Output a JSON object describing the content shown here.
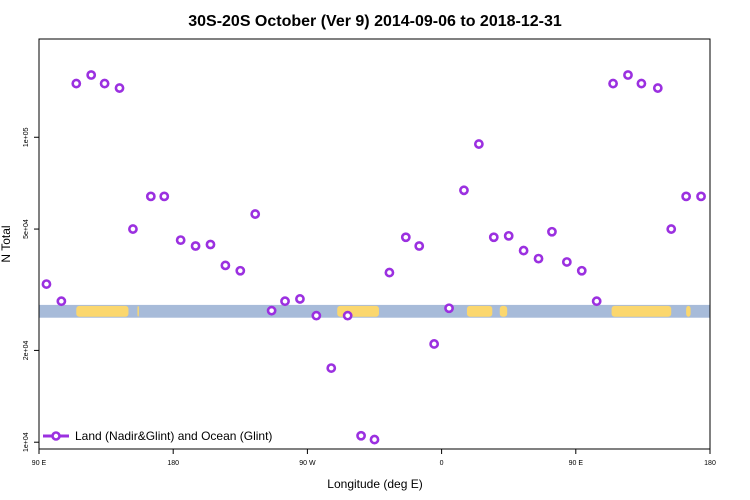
{
  "chart_data": {
    "type": "scatter",
    "title": "30S-20S October (Ver 9)   2014-09-06 to 2018-12-31",
    "xlabel": "Longitude (deg E)",
    "ylabel": "N Total",
    "x_scale": "longitude_wrapped_90E_to_180",
    "y_scale": "log",
    "xlim": [
      90,
      540
    ],
    "ylim": [
      9500,
      210000
    ],
    "x_ticks": [
      {
        "value": 90,
        "label": "90 E"
      },
      {
        "value": 180,
        "label": "180"
      },
      {
        "value": 270,
        "label": "90 W"
      },
      {
        "value": 360,
        "label": "0"
      },
      {
        "value": 450,
        "label": "90 E"
      },
      {
        "value": 540,
        "label": "180"
      }
    ],
    "y_ticks": [
      {
        "value": 10000,
        "label": "1e+04"
      },
      {
        "value": 20000,
        "label": "2e+04"
      },
      {
        "value": 50000,
        "label": "5e+04"
      },
      {
        "value": 100000,
        "label": "1e+05"
      }
    ],
    "grid": false,
    "legend_position": "bottom-left",
    "colors": {
      "points": "#9b30e0",
      "ocean": "#a7bbd9",
      "land": "#fbd76e"
    },
    "map_strip": {
      "y_range": [
        25600,
        28200
      ],
      "land_ranges": [
        [
          115,
          150
        ],
        [
          156,
          157
        ],
        [
          290,
          318
        ],
        [
          377,
          394
        ],
        [
          399,
          404
        ],
        [
          474,
          514
        ],
        [
          524,
          527
        ]
      ]
    },
    "series": [
      {
        "name": "Land (Nadir&Glint) and Ocean (Glint)",
        "x": [
          95,
          105,
          115,
          125,
          134,
          144,
          153,
          165,
          174,
          185,
          195,
          205,
          215,
          225,
          235,
          246,
          255,
          265,
          276,
          286,
          297,
          306,
          315,
          325,
          336,
          345,
          355,
          365,
          375,
          385,
          395,
          405,
          415,
          425,
          434,
          444,
          454,
          464,
          475,
          485,
          494,
          505,
          514,
          524,
          534
        ],
        "y": [
          33000,
          29000,
          150000,
          160000,
          150000,
          145000,
          50000,
          64000,
          64000,
          46000,
          44000,
          44500,
          38000,
          36500,
          56000,
          27000,
          29000,
          29500,
          26000,
          17500,
          26000,
          10500,
          10200,
          36000,
          47000,
          44000,
          21000,
          27500,
          67000,
          95000,
          47000,
          47500,
          42500,
          40000,
          49000,
          39000,
          36500,
          29000,
          150000,
          160000,
          150000,
          145000,
          50000,
          64000,
          64000
        ]
      }
    ]
  }
}
